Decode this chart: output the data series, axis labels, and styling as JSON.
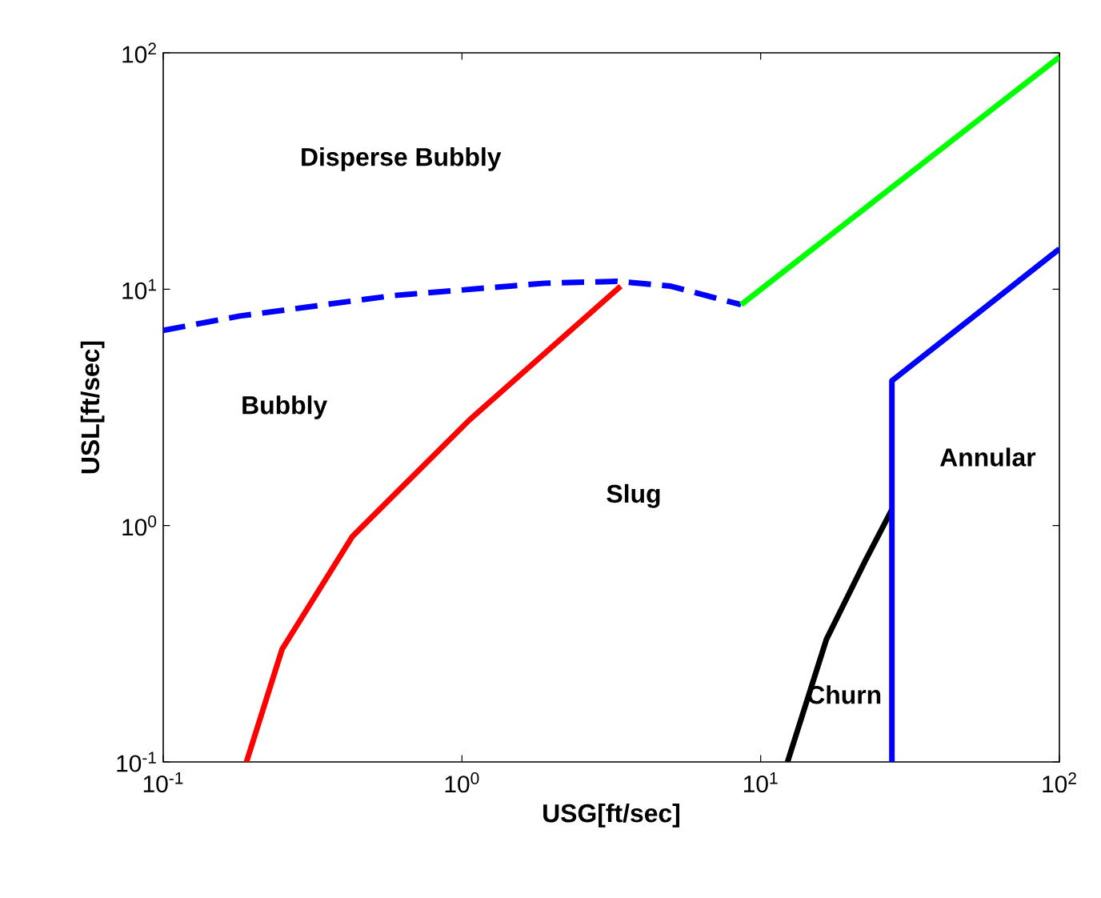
{
  "chart_data": {
    "type": "line",
    "log": "xy",
    "xlabel": "USG[ft/sec]",
    "ylabel": "USL[ft/sec]",
    "xlim": [
      0.1,
      100
    ],
    "ylim": [
      0.1,
      100
    ],
    "xticks": [
      {
        "value": 0.1,
        "label": "10$^{-1}$"
      },
      {
        "value": 1,
        "label": "10$^{0}$"
      },
      {
        "value": 10,
        "label": "10$^{1}$"
      },
      {
        "value": 100,
        "label": "10$^{2}$"
      }
    ],
    "yticks": [
      {
        "value": 0.1,
        "label": "10$^{-1}$"
      },
      {
        "value": 1,
        "label": "10$^{0}$"
      },
      {
        "value": 10,
        "label": "10$^{1}$"
      },
      {
        "value": 100,
        "label": "10$^{2}$"
      }
    ],
    "series": [
      {
        "color": "#0000ff",
        "line_style": "dashed",
        "x": [
          0.1,
          0.18,
          0.59,
          1.9,
          3.3,
          5.0,
          8.6
        ],
        "values": [
          6.7,
          7.7,
          9.4,
          10.6,
          10.8,
          10.3,
          8.6
        ]
      },
      {
        "color": "#00ff00",
        "line_style": "solid",
        "x": [
          8.6,
          100
        ],
        "values": [
          8.6,
          96
        ]
      },
      {
        "color": "#ff0000",
        "line_style": "solid",
        "x": [
          0.19,
          0.25,
          0.43,
          1.06,
          3.4
        ],
        "values": [
          0.1,
          0.3,
          0.9,
          2.8,
          10.3
        ]
      },
      {
        "color": "#000000",
        "line_style": "solid",
        "x": [
          12.3,
          16.6,
          22.4,
          27.5
        ],
        "values": [
          0.1,
          0.33,
          0.71,
          1.17
        ]
      },
      {
        "color": "#0000ff",
        "line_style": "solid",
        "x": [
          27.5,
          27.5,
          100
        ],
        "values": [
          0.1,
          4.1,
          14.8
        ]
      }
    ],
    "annotations": [
      "Disperse Bubbly",
      "Bubbly",
      "Slug",
      "Annular",
      "Churn"
    ]
  }
}
